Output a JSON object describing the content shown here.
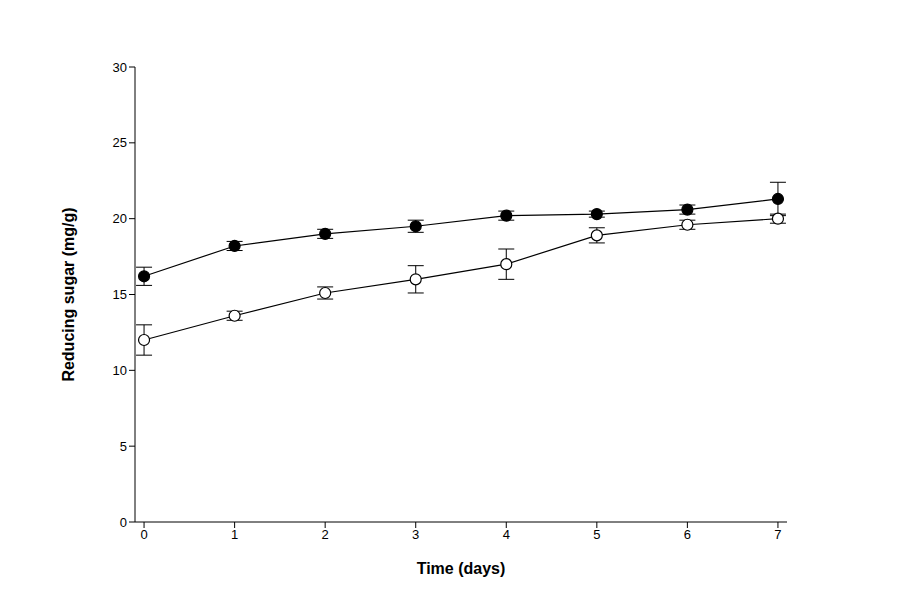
{
  "chart_data": {
    "type": "line",
    "x_label": "Time (days)",
    "y_label": "Reducing sugar (mg/g)",
    "x": [
      0,
      1,
      2,
      3,
      4,
      5,
      6,
      7
    ],
    "series": [
      {
        "color": "#000000",
        "marker": "filled_circle",
        "values": [
          16.2,
          18.2,
          19.0,
          19.5,
          20.2,
          20.3,
          20.6,
          21.3
        ],
        "errors": [
          0.6,
          0.3,
          0.3,
          0.4,
          0.3,
          0.2,
          0.3,
          1.1
        ]
      },
      {
        "color": "#000000",
        "marker": "open_circle",
        "values": [
          12.0,
          13.6,
          15.1,
          16.0,
          17.0,
          18.9,
          19.6,
          20.0
        ],
        "errors": [
          1.0,
          0.3,
          0.4,
          0.9,
          1.0,
          0.5,
          0.3,
          0.3
        ]
      }
    ],
    "xlim": [
      -0.1,
      7.1
    ],
    "xticks": [
      0,
      1,
      2,
      3,
      4,
      5,
      6,
      7
    ],
    "ylim": [
      0,
      30
    ],
    "yticks": [
      0,
      5,
      10,
      15,
      20,
      25,
      30
    ],
    "grid": false
  }
}
